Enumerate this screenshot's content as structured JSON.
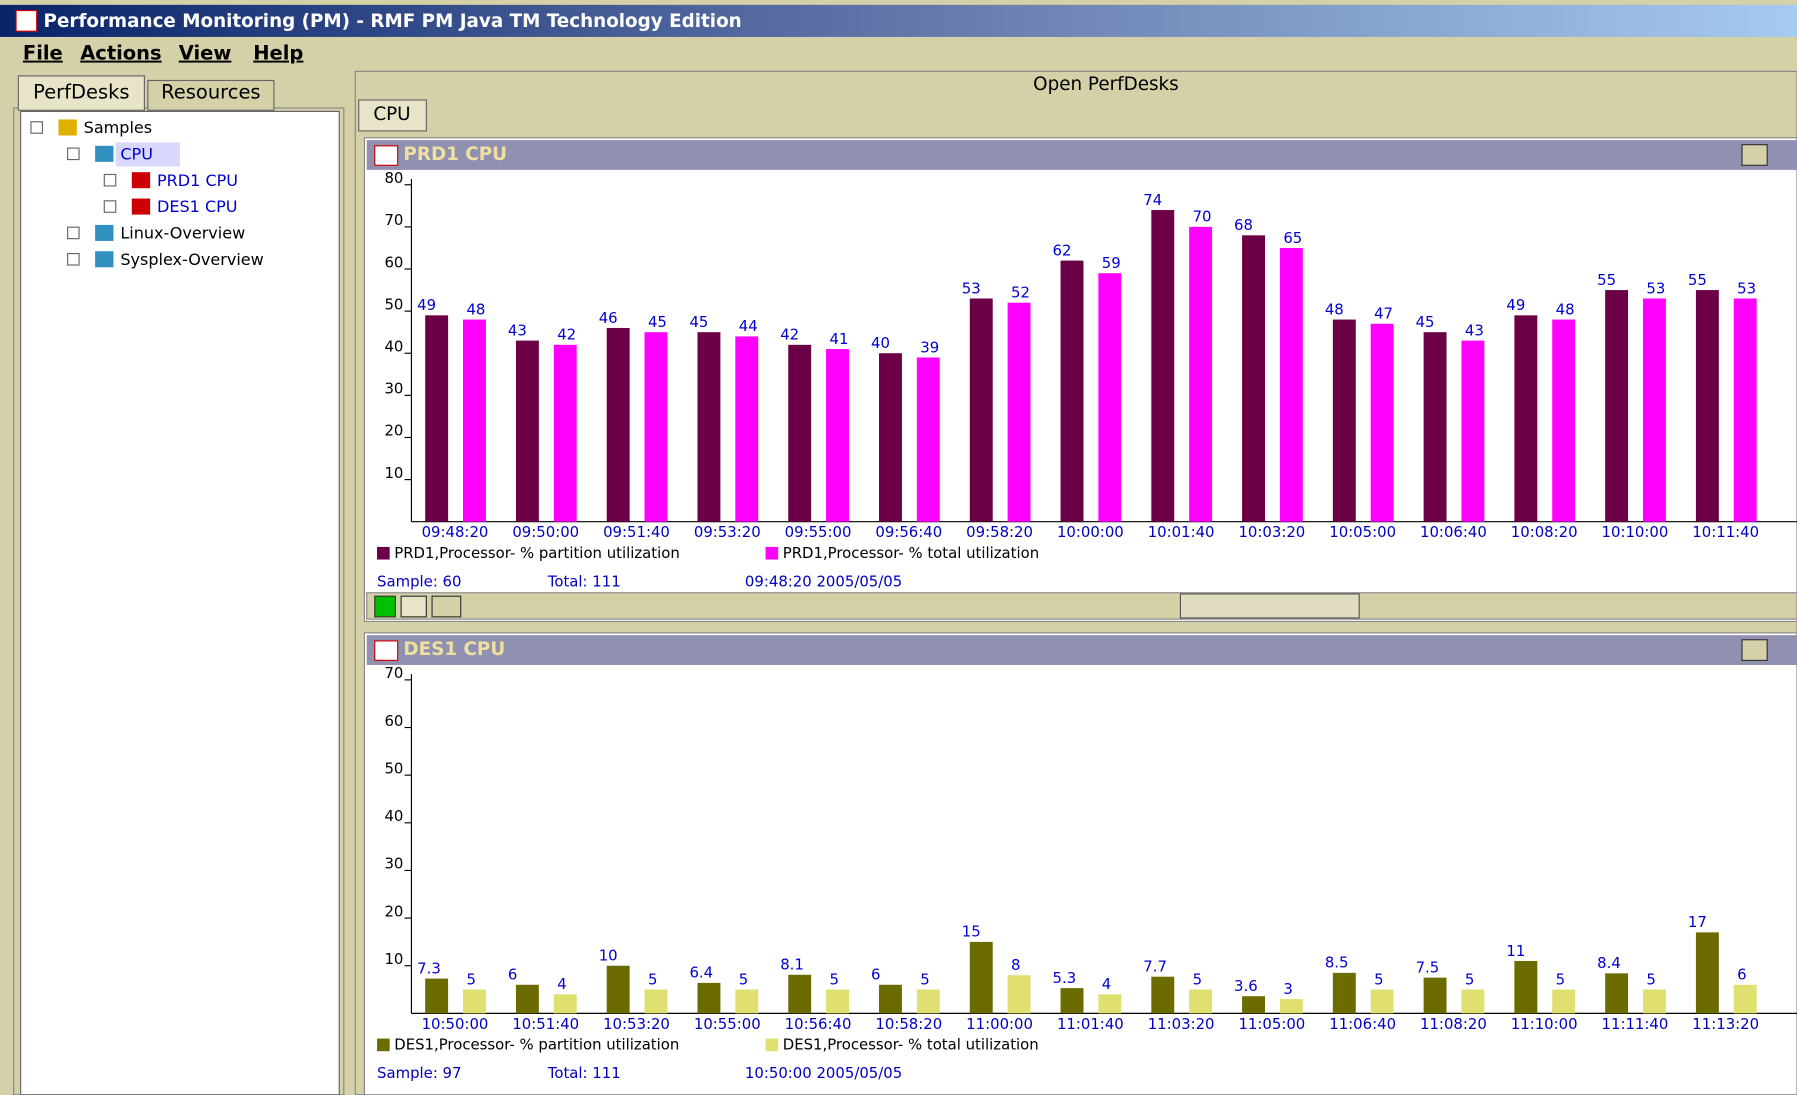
{
  "window": {
    "title": "Performance Monitoring (PM) - RMF PM Java TM Technology Edition"
  },
  "menu": [
    "File",
    "Actions",
    "View",
    "Help"
  ],
  "sidebar": {
    "tabs": [
      "PerfDesks",
      "Resources"
    ],
    "tree": [
      {
        "label": "Samples",
        "level": 0
      },
      {
        "label": "CPU",
        "level": 1
      },
      {
        "label": "PRD1 CPU",
        "level": 2
      },
      {
        "label": "DES1 CPU",
        "level": 2
      },
      {
        "label": "Linux-Overview",
        "level": 1
      },
      {
        "label": "Sysplex-Overview",
        "level": 1
      }
    ]
  },
  "main": {
    "header": "Open PerfDesks",
    "tab": "CPU"
  },
  "chart_data": [
    {
      "type": "bar",
      "title": "PRD1 CPU",
      "categories": [
        "09:48:20",
        "09:50:00",
        "09:51:40",
        "09:53:20",
        "09:55:00",
        "09:56:40",
        "09:58:20",
        "10:00:00",
        "10:01:40",
        "10:03:20",
        "10:05:00",
        "10:06:40",
        "10:08:20",
        "10:10:00",
        "10:11:40"
      ],
      "series": [
        {
          "name": "PRD1,Processor- % partition utilization",
          "color": "#6b0046",
          "values": [
            49,
            43,
            46,
            45,
            42,
            40,
            53,
            62,
            74,
            68,
            48,
            45,
            49,
            55,
            55
          ]
        },
        {
          "name": "PRD1,Processor- % total utilization",
          "color": "#ff00ff",
          "values": [
            48,
            42,
            45,
            44,
            41,
            39,
            52,
            59,
            70,
            65,
            47,
            43,
            48,
            53,
            53
          ]
        }
      ],
      "ylim": [
        0,
        80
      ],
      "yticks": [
        10,
        20,
        30,
        40,
        50,
        60,
        70,
        80
      ],
      "status": {
        "sample": "Sample: 60",
        "total": "Total: 111",
        "time": "09:48:20  2005/05/05"
      }
    },
    {
      "type": "bar",
      "title": "DES1 CPU",
      "categories": [
        "10:50:00",
        "10:51:40",
        "10:53:20",
        "10:55:00",
        "10:56:40",
        "10:58:20",
        "11:00:00",
        "11:01:40",
        "11:03:20",
        "11:05:00",
        "11:06:40",
        "11:08:20",
        "11:10:00",
        "11:11:40",
        "11:13:20"
      ],
      "series": [
        {
          "name": "DES1,Processor- % partition utilization",
          "color": "#6b6b00",
          "values": [
            7.3,
            6,
            10,
            6.4,
            8.1,
            6,
            15,
            5.3,
            7.7,
            3.6,
            8.5,
            7.5,
            11,
            8.4,
            17
          ]
        },
        {
          "name": "DES1,Processor- % total utilization",
          "color": "#e0e070",
          "values": [
            5,
            4,
            5,
            5,
            5,
            5,
            8,
            4,
            5,
            3,
            5,
            5,
            5,
            5,
            6
          ]
        }
      ],
      "ylim": [
        0,
        70
      ],
      "yticks": [
        10,
        20,
        30,
        40,
        50,
        60,
        70
      ],
      "status": {
        "sample": "Sample: 97",
        "total": "Total: 111",
        "time": "10:50:00  2005/05/05"
      }
    }
  ]
}
